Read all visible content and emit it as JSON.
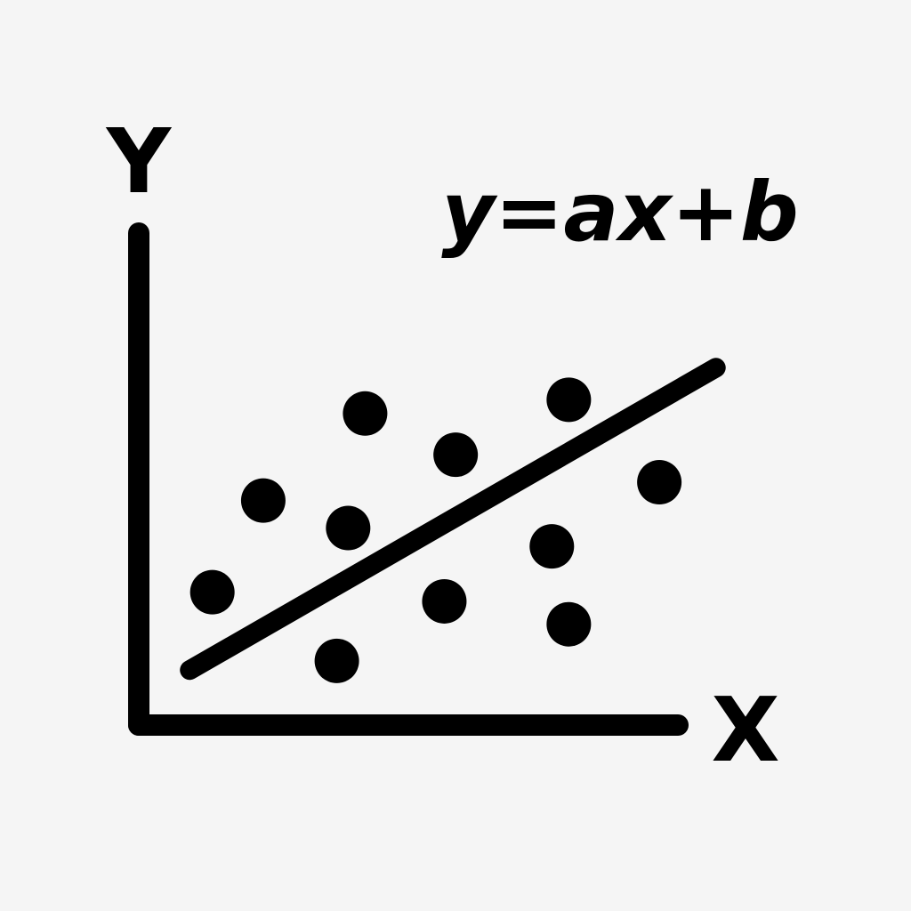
{
  "chart_data": {
    "type": "scatter",
    "title": "",
    "xlabel": "X",
    "ylabel": "Y",
    "xlim": [
      0,
      10
    ],
    "ylim": [
      0,
      10
    ],
    "grid": false,
    "legend": "none",
    "annotation": "y=ax+b",
    "points": [
      {
        "x": 1.3,
        "y": 2.9
      },
      {
        "x": 2.2,
        "y": 4.9
      },
      {
        "x": 3.5,
        "y": 1.4
      },
      {
        "x": 3.7,
        "y": 4.3
      },
      {
        "x": 4.0,
        "y": 6.8
      },
      {
        "x": 5.4,
        "y": 2.7
      },
      {
        "x": 5.6,
        "y": 5.9
      },
      {
        "x": 7.3,
        "y": 3.9
      },
      {
        "x": 7.6,
        "y": 7.1
      },
      {
        "x": 7.6,
        "y": 2.2
      },
      {
        "x": 9.2,
        "y": 5.3
      }
    ],
    "trend_line": {
      "x": [
        0.9,
        10.2
      ],
      "y": [
        1.2,
        7.8
      ]
    },
    "colors": {
      "background": "#f5f5f5",
      "ink": "#000000"
    }
  }
}
